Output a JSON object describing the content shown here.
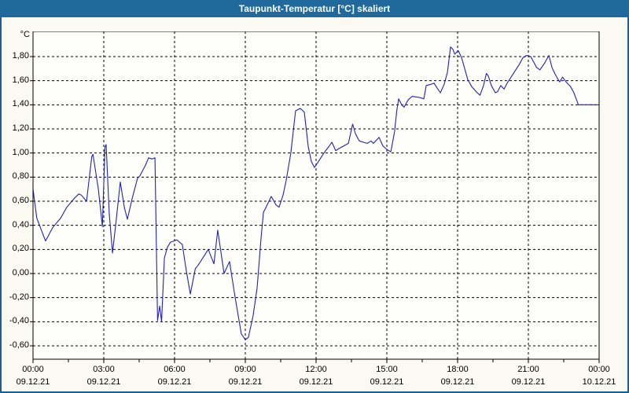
{
  "window": {
    "title": "Taupunkt-Temperatur [°C] skaliert"
  },
  "colors": {
    "titlebar_bg": "#1f699c",
    "titlebar_text": "#ffffff",
    "window_border": "#1a5e8f",
    "page_bg": "#fafaf2",
    "plot_bg": "#fefefa",
    "grid": "#000000",
    "label": "#000000",
    "series_line": "#2121bb"
  },
  "chart_data": {
    "type": "line",
    "title": "Taupunkt-Temperatur [°C] skaliert",
    "unit_label": "°C",
    "grid": "dashed",
    "legend": "none",
    "ylim": [
      -0.71,
      2.01
    ],
    "xlim_hours": [
      0,
      24
    ],
    "x_tick_interval_hours": 3,
    "x_minor_tick_interval_hours": 1.5,
    "y_ticks": [
      {
        "value": 1.8,
        "label": "1,80"
      },
      {
        "value": 1.6,
        "label": "1,60"
      },
      {
        "value": 1.4,
        "label": "1,40"
      },
      {
        "value": 1.2,
        "label": "1,20"
      },
      {
        "value": 1.0,
        "label": "1,00"
      },
      {
        "value": 0.8,
        "label": "0,80"
      },
      {
        "value": 0.6,
        "label": "0,60"
      },
      {
        "value": 0.4,
        "label": "0,40"
      },
      {
        "value": 0.2,
        "label": "0,20"
      },
      {
        "value": 0.0,
        "label": "0,00"
      },
      {
        "value": -0.2,
        "label": "-0,20"
      },
      {
        "value": -0.4,
        "label": "-0,40"
      },
      {
        "value": -0.6,
        "label": "-0,60"
      }
    ],
    "x_ticks": [
      {
        "hour": 0,
        "time": "00:00",
        "date": "09.12.21"
      },
      {
        "hour": 3,
        "time": "03:00",
        "date": "09.12.21"
      },
      {
        "hour": 6,
        "time": "06:00",
        "date": "09.12.21"
      },
      {
        "hour": 9,
        "time": "09:00",
        "date": "09.12.21"
      },
      {
        "hour": 12,
        "time": "12:00",
        "date": "09.12.21"
      },
      {
        "hour": 15,
        "time": "15:00",
        "date": "09.12.21"
      },
      {
        "hour": 18,
        "time": "18:00",
        "date": "09.12.21"
      },
      {
        "hour": 21,
        "time": "21:00",
        "date": "09.12.21"
      },
      {
        "hour": 24,
        "time": "00:00",
        "date": "10.12.21"
      }
    ],
    "series": [
      {
        "name": "Taupunkt-Temperatur [°C] skaliert",
        "color": "#2121bb",
        "points": [
          [
            0,
            0.7
          ],
          [
            0.16,
            0.46
          ],
          [
            0.53,
            0.27
          ],
          [
            0.83,
            0.38
          ],
          [
            1.17,
            0.46
          ],
          [
            1.43,
            0.55
          ],
          [
            1.78,
            0.63
          ],
          [
            1.94,
            0.66
          ],
          [
            2.05,
            0.65
          ],
          [
            2.27,
            0.6
          ],
          [
            2.49,
            0.97
          ],
          [
            2.54,
            0.99
          ],
          [
            2.77,
            0.7
          ],
          [
            2.94,
            0.39
          ],
          [
            3.05,
            1.05
          ],
          [
            3.1,
            1.07
          ],
          [
            3.23,
            0.5
          ],
          [
            3.37,
            0.17
          ],
          [
            3.53,
            0.45
          ],
          [
            3.7,
            0.76
          ],
          [
            3.87,
            0.55
          ],
          [
            4.0,
            0.45
          ],
          [
            4.2,
            0.62
          ],
          [
            4.43,
            0.79
          ],
          [
            4.53,
            0.81
          ],
          [
            4.77,
            0.9
          ],
          [
            4.9,
            0.96
          ],
          [
            5.05,
            0.95
          ],
          [
            5.17,
            0.96
          ],
          [
            5.28,
            -0.39
          ],
          [
            5.37,
            -0.27
          ],
          [
            5.45,
            -0.4
          ],
          [
            5.57,
            0.13
          ],
          [
            5.7,
            0.22
          ],
          [
            5.83,
            0.26
          ],
          [
            6.1,
            0.28
          ],
          [
            6.33,
            0.24
          ],
          [
            6.5,
            0.02
          ],
          [
            6.67,
            -0.17
          ],
          [
            6.88,
            0.04
          ],
          [
            7.0,
            0.07
          ],
          [
            7.2,
            0.13
          ],
          [
            7.43,
            0.2
          ],
          [
            7.67,
            0.08
          ],
          [
            7.83,
            0.36
          ],
          [
            8.1,
            0.0
          ],
          [
            8.33,
            0.1
          ],
          [
            8.57,
            -0.2
          ],
          [
            8.83,
            -0.5
          ],
          [
            9.0,
            -0.55
          ],
          [
            9.13,
            -0.53
          ],
          [
            9.33,
            -0.35
          ],
          [
            9.5,
            -0.12
          ],
          [
            9.67,
            0.3
          ],
          [
            9.77,
            0.51
          ],
          [
            9.83,
            0.53
          ],
          [
            10.1,
            0.64
          ],
          [
            10.3,
            0.57
          ],
          [
            10.43,
            0.55
          ],
          [
            10.6,
            0.65
          ],
          [
            10.73,
            0.77
          ],
          [
            10.93,
            1.0
          ],
          [
            11.13,
            1.35
          ],
          [
            11.33,
            1.37
          ],
          [
            11.5,
            1.34
          ],
          [
            11.67,
            1.05
          ],
          [
            11.8,
            0.93
          ],
          [
            11.93,
            0.88
          ],
          [
            12.1,
            0.93
          ],
          [
            12.33,
            1.0
          ],
          [
            12.53,
            1.05
          ],
          [
            12.67,
            1.09
          ],
          [
            12.83,
            1.02
          ],
          [
            13.0,
            1.04
          ],
          [
            13.37,
            1.08
          ],
          [
            13.55,
            1.24
          ],
          [
            13.67,
            1.16
          ],
          [
            13.83,
            1.1
          ],
          [
            14.0,
            1.09
          ],
          [
            14.17,
            1.08
          ],
          [
            14.33,
            1.1
          ],
          [
            14.43,
            1.08
          ],
          [
            14.67,
            1.13
          ],
          [
            14.83,
            1.06
          ],
          [
            15.0,
            1.03
          ],
          [
            15.17,
            1.01
          ],
          [
            15.33,
            1.18
          ],
          [
            15.42,
            1.35
          ],
          [
            15.5,
            1.45
          ],
          [
            15.63,
            1.4
          ],
          [
            15.73,
            1.38
          ],
          [
            15.9,
            1.44
          ],
          [
            16.07,
            1.47
          ],
          [
            16.4,
            1.46
          ],
          [
            16.57,
            1.45
          ],
          [
            16.67,
            1.56
          ],
          [
            16.87,
            1.57
          ],
          [
            17.0,
            1.58
          ],
          [
            17.13,
            1.54
          ],
          [
            17.27,
            1.5
          ],
          [
            17.43,
            1.57
          ],
          [
            17.57,
            1.67
          ],
          [
            17.7,
            1.88
          ],
          [
            17.8,
            1.86
          ],
          [
            17.88,
            1.82
          ],
          [
            18.03,
            1.85
          ],
          [
            18.17,
            1.79
          ],
          [
            18.3,
            1.7
          ],
          [
            18.43,
            1.61
          ],
          [
            18.6,
            1.55
          ],
          [
            18.83,
            1.5
          ],
          [
            18.95,
            1.48
          ],
          [
            19.1,
            1.56
          ],
          [
            19.22,
            1.66
          ],
          [
            19.3,
            1.64
          ],
          [
            19.43,
            1.56
          ],
          [
            19.6,
            1.5
          ],
          [
            19.7,
            1.51
          ],
          [
            19.83,
            1.56
          ],
          [
            19.97,
            1.53
          ],
          [
            20.1,
            1.58
          ],
          [
            20.27,
            1.63
          ],
          [
            20.43,
            1.68
          ],
          [
            20.6,
            1.73
          ],
          [
            20.77,
            1.79
          ],
          [
            20.93,
            1.81
          ],
          [
            21.1,
            1.8
          ],
          [
            21.35,
            1.71
          ],
          [
            21.49,
            1.69
          ],
          [
            21.67,
            1.74
          ],
          [
            21.87,
            1.81
          ],
          [
            22.0,
            1.71
          ],
          [
            22.12,
            1.66
          ],
          [
            22.23,
            1.62
          ],
          [
            22.33,
            1.59
          ],
          [
            22.45,
            1.63
          ],
          [
            22.6,
            1.59
          ],
          [
            22.79,
            1.55
          ],
          [
            22.93,
            1.5
          ],
          [
            23.12,
            1.4
          ],
          [
            23.6,
            1.4
          ],
          [
            24.0,
            1.4
          ]
        ]
      }
    ]
  }
}
